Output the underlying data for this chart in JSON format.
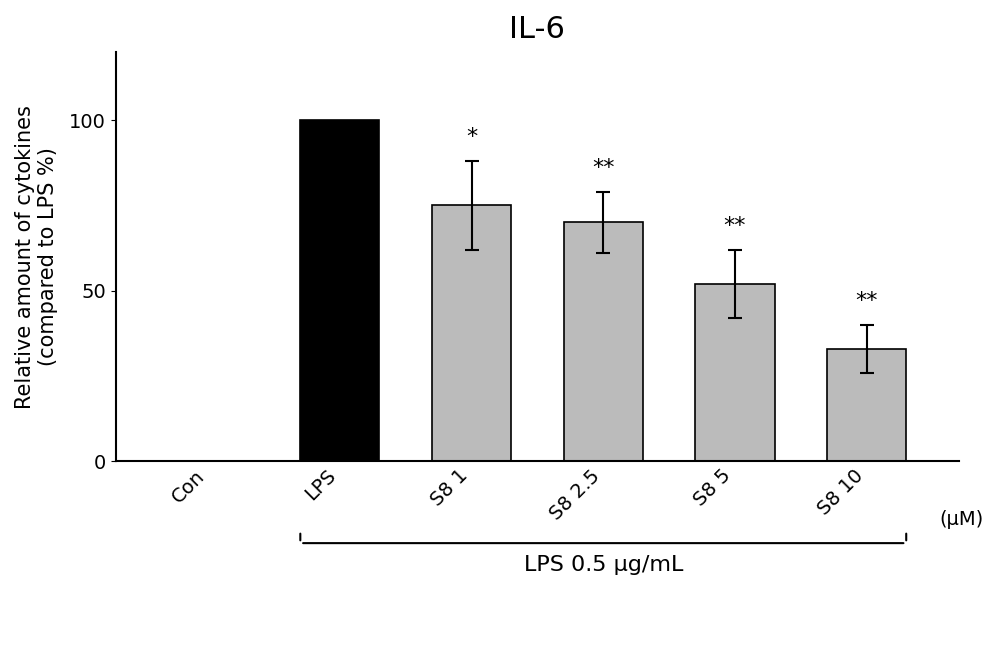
{
  "title": "IL-6",
  "ylabel": "Relative amount of cytokines\n(compared to LPS %)",
  "categories": [
    "Con",
    "LPS",
    "S8 1",
    "S8 2.5",
    "S8 5",
    "S8 10"
  ],
  "values": [
    0,
    100,
    75,
    70,
    52,
    33
  ],
  "errors": [
    0,
    0,
    13,
    9,
    10,
    7
  ],
  "bar_colors": [
    "#000000",
    "#000000",
    "#bbbbbb",
    "#bbbbbb",
    "#bbbbbb",
    "#bbbbbb"
  ],
  "significance": [
    "",
    "",
    "*",
    "**",
    "**",
    "**"
  ],
  "ylim": [
    0,
    120
  ],
  "yticks": [
    0,
    50,
    100
  ],
  "bracket_label": "LPS 0.5 μg/mL",
  "um_label": "(μM)",
  "background_color": "#ffffff",
  "title_fontsize": 22,
  "axis_fontsize": 15,
  "tick_fontsize": 14,
  "sig_fontsize": 16,
  "bracket_fontsize": 16
}
